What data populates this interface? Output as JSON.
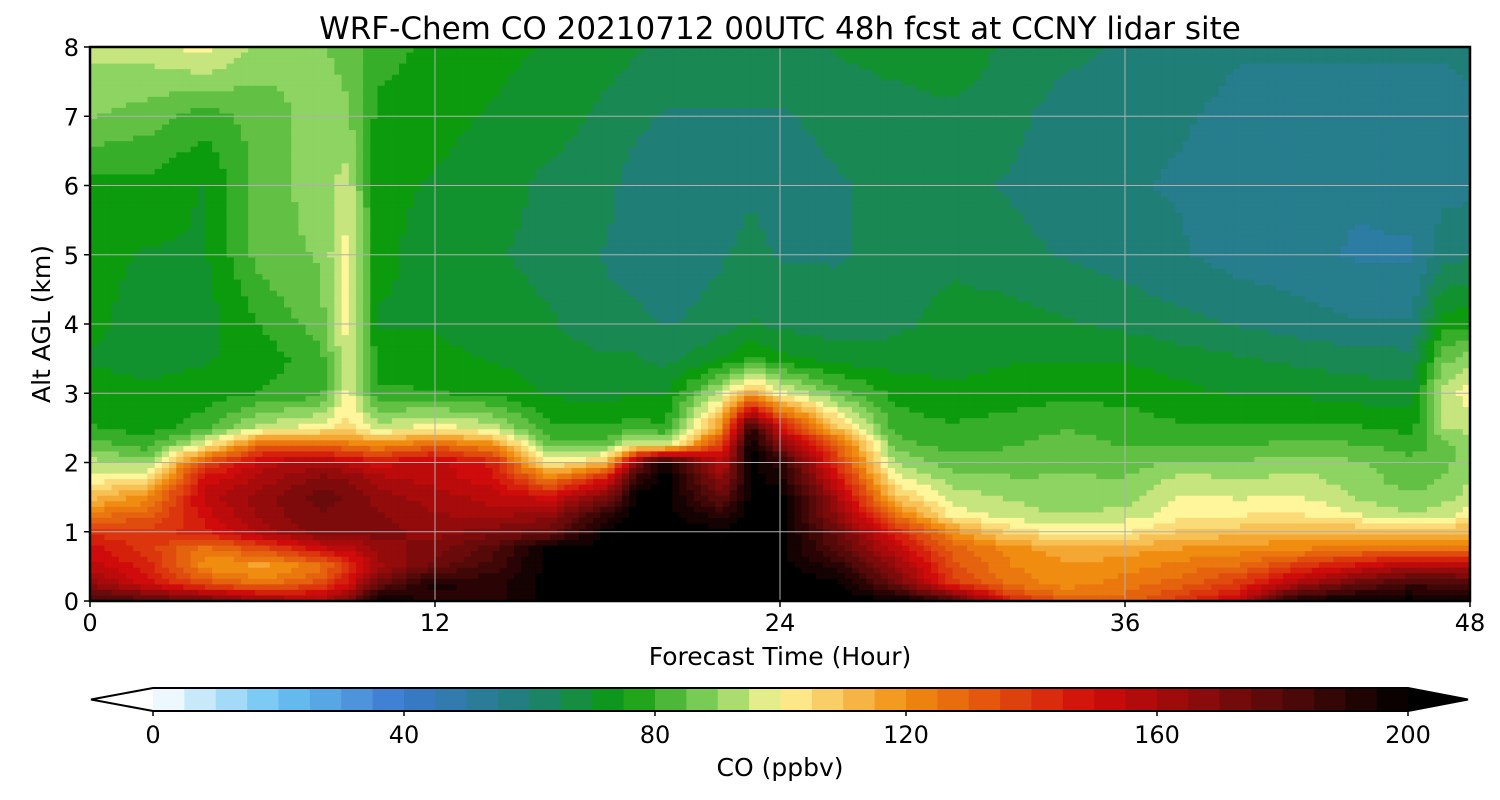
{
  "chart_data": {
    "type": "heatmap",
    "title": "WRF-Chem CO  20210712 00UTC 48h fcst at CCNY lidar site",
    "xlabel": "Forecast Time (Hour)",
    "ylabel": "Alt AGL (km)",
    "xlim": [
      0,
      48
    ],
    "ylim": [
      0,
      8
    ],
    "x_ticks": [
      "0",
      "12",
      "24",
      "36",
      "48"
    ],
    "y_ticks": [
      "0",
      "1",
      "2",
      "3",
      "4",
      "5",
      "6",
      "7",
      "8"
    ],
    "grid": true,
    "colorbar": {
      "label": "CO  (ppbv)",
      "ticks": [
        "0",
        "40",
        "80",
        "120",
        "160",
        "200"
      ],
      "range": [
        0,
        200
      ],
      "extend": "both",
      "placement": "bottom",
      "color_stops": [
        {
          "v": 0,
          "c": "#ffffff"
        },
        {
          "v": 20,
          "c": "#6ac3f2"
        },
        {
          "v": 40,
          "c": "#3b78cf"
        },
        {
          "v": 60,
          "c": "#1f7f76"
        },
        {
          "v": 75,
          "c": "#0c9b0c"
        },
        {
          "v": 90,
          "c": "#8dd462"
        },
        {
          "v": 100,
          "c": "#fff59a"
        },
        {
          "v": 120,
          "c": "#f08d10"
        },
        {
          "v": 150,
          "c": "#d00b0b"
        },
        {
          "v": 175,
          "c": "#6a0b0b"
        },
        {
          "v": 200,
          "c": "#000000"
        }
      ]
    },
    "x_hours": [
      0,
      2,
      4,
      6,
      8,
      9,
      10,
      12,
      14,
      16,
      18,
      19,
      20,
      22,
      23,
      24,
      26,
      28,
      30,
      32,
      34,
      36,
      38,
      40,
      42,
      44,
      46,
      47,
      48
    ],
    "y_km": [
      0,
      0.25,
      0.5,
      0.75,
      1,
      1.25,
      1.5,
      1.75,
      2,
      2.25,
      2.5,
      3,
      3.5,
      4,
      5,
      6,
      7,
      8
    ],
    "values_ppbv": [
      [
        186,
        180,
        175,
        165,
        160,
        170,
        200,
        190,
        190,
        200,
        200,
        200,
        200,
        200,
        200,
        200,
        200,
        200,
        185,
        145,
        130,
        130,
        140,
        155,
        195,
        200,
        200,
        195,
        195
      ],
      [
        165,
        150,
        135,
        125,
        135,
        150,
        175,
        195,
        190,
        200,
        200,
        200,
        200,
        200,
        200,
        200,
        200,
        175,
        140,
        125,
        120,
        125,
        130,
        140,
        160,
        175,
        185,
        185,
        180
      ],
      [
        155,
        145,
        120,
        115,
        125,
        140,
        160,
        175,
        185,
        200,
        200,
        200,
        200,
        200,
        200,
        200,
        190,
        165,
        135,
        123,
        118,
        120,
        125,
        128,
        140,
        150,
        160,
        160,
        160
      ],
      [
        150,
        140,
        125,
        135,
        150,
        155,
        165,
        170,
        180,
        200,
        200,
        200,
        200,
        200,
        200,
        200,
        180,
        155,
        130,
        120,
        115,
        115,
        118,
        120,
        122,
        125,
        128,
        128,
        128
      ],
      [
        140,
        140,
        145,
        160,
        170,
        168,
        170,
        165,
        170,
        175,
        200,
        200,
        200,
        200,
        200,
        200,
        175,
        145,
        120,
        105,
        100,
        102,
        108,
        110,
        112,
        112,
        112,
        112,
        112
      ],
      [
        125,
        130,
        150,
        165,
        172,
        170,
        168,
        163,
        160,
        165,
        190,
        200,
        200,
        190,
        200,
        200,
        165,
        125,
        100,
        95,
        92,
        95,
        100,
        102,
        103,
        98,
        92,
        95,
        100
      ],
      [
        110,
        120,
        155,
        165,
        175,
        172,
        165,
        160,
        155,
        150,
        170,
        200,
        200,
        175,
        200,
        200,
        160,
        110,
        95,
        92,
        88,
        90,
        98,
        97,
        98,
        92,
        88,
        90,
        95
      ],
      [
        100,
        105,
        150,
        160,
        170,
        168,
        160,
        155,
        150,
        125,
        150,
        190,
        200,
        165,
        200,
        195,
        150,
        100,
        90,
        88,
        88,
        88,
        95,
        92,
        95,
        90,
        85,
        88,
        92
      ],
      [
        95,
        90,
        135,
        155,
        160,
        155,
        150,
        155,
        145,
        100,
        110,
        170,
        200,
        155,
        200,
        190,
        140,
        92,
        85,
        85,
        86,
        85,
        88,
        88,
        90,
        88,
        84,
        86,
        90
      ],
      [
        85,
        80,
        100,
        130,
        130,
        125,
        120,
        130,
        120,
        85,
        85,
        100,
        95,
        140,
        200,
        170,
        130,
        85,
        80,
        82,
        85,
        82,
        82,
        82,
        84,
        83,
        80,
        85,
        90
      ],
      [
        78,
        75,
        80,
        95,
        100,
        105,
        95,
        100,
        95,
        78,
        78,
        80,
        78,
        120,
        190,
        150,
        110,
        80,
        78,
        80,
        82,
        80,
        78,
        78,
        78,
        78,
        76,
        92,
        95
      ],
      [
        75,
        74,
        75,
        78,
        80,
        100,
        78,
        78,
        76,
        72,
        70,
        72,
        72,
        95,
        115,
        100,
        85,
        76,
        74,
        75,
        76,
        76,
        74,
        72,
        72,
        70,
        70,
        95,
        100
      ],
      [
        72,
        70,
        72,
        75,
        80,
        98,
        76,
        74,
        72,
        70,
        68,
        68,
        66,
        72,
        78,
        74,
        70,
        70,
        70,
        72,
        72,
        72,
        70,
        68,
        66,
        65,
        64,
        85,
        90
      ],
      [
        74,
        70,
        70,
        78,
        85,
        100,
        72,
        72,
        70,
        68,
        64,
        64,
        62,
        65,
        68,
        66,
        65,
        66,
        70,
        70,
        68,
        66,
        64,
        62,
        60,
        58,
        58,
        75,
        76
      ],
      [
        74,
        72,
        72,
        85,
        88,
        100,
        74,
        70,
        68,
        66,
        62,
        60,
        58,
        62,
        64,
        62,
        62,
        64,
        66,
        64,
        62,
        60,
        58,
        55,
        54,
        52,
        52,
        60,
        62
      ],
      [
        75,
        76,
        72,
        85,
        90,
        95,
        74,
        72,
        70,
        66,
        64,
        60,
        58,
        60,
        62,
        60,
        62,
        64,
        64,
        62,
        60,
        58,
        57,
        54,
        54,
        53,
        54,
        56,
        56
      ],
      [
        88,
        85,
        80,
        85,
        90,
        88,
        76,
        74,
        72,
        70,
        66,
        64,
        62,
        62,
        62,
        62,
        64,
        65,
        66,
        64,
        60,
        58,
        58,
        56,
        56,
        56,
        56,
        56,
        57
      ],
      [
        94,
        95,
        100,
        90,
        88,
        86,
        80,
        76,
        74,
        72,
        70,
        68,
        66,
        66,
        66,
        66,
        68,
        70,
        72,
        66,
        64,
        62,
        60,
        58,
        58,
        58,
        58,
        58,
        58
      ]
    ]
  }
}
